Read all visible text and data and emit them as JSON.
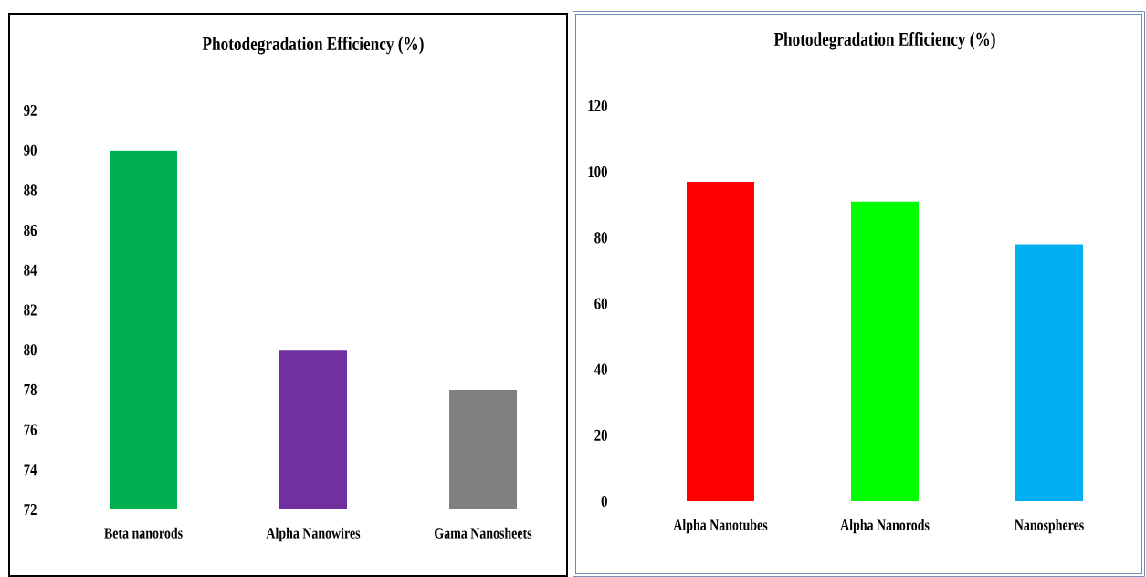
{
  "chart_data": [
    {
      "type": "bar",
      "title": "Photodegradation Efficiency (%)",
      "categories": [
        "Beta nanorods",
        "Alpha Nanowires",
        "Gama Nanosheets"
      ],
      "values": [
        90,
        80,
        78
      ],
      "colors": [
        "#00b050",
        "#7030a0",
        "#808080"
      ],
      "ylim": [
        72,
        92
      ],
      "yticks": [
        72,
        74,
        76,
        78,
        80,
        82,
        84,
        86,
        88,
        90,
        92
      ]
    },
    {
      "type": "bar",
      "title": "Photodegradation Efficiency (%)",
      "categories": [
        "Alpha Nanotubes",
        "Alpha Nanorods",
        "Nanospheres"
      ],
      "values": [
        97,
        91,
        78
      ],
      "colors": [
        "#ff0000",
        "#00ff00",
        "#00b0f0"
      ],
      "ylim": [
        0,
        120
      ],
      "yticks": [
        0,
        20,
        40,
        60,
        80,
        100,
        120
      ]
    }
  ]
}
